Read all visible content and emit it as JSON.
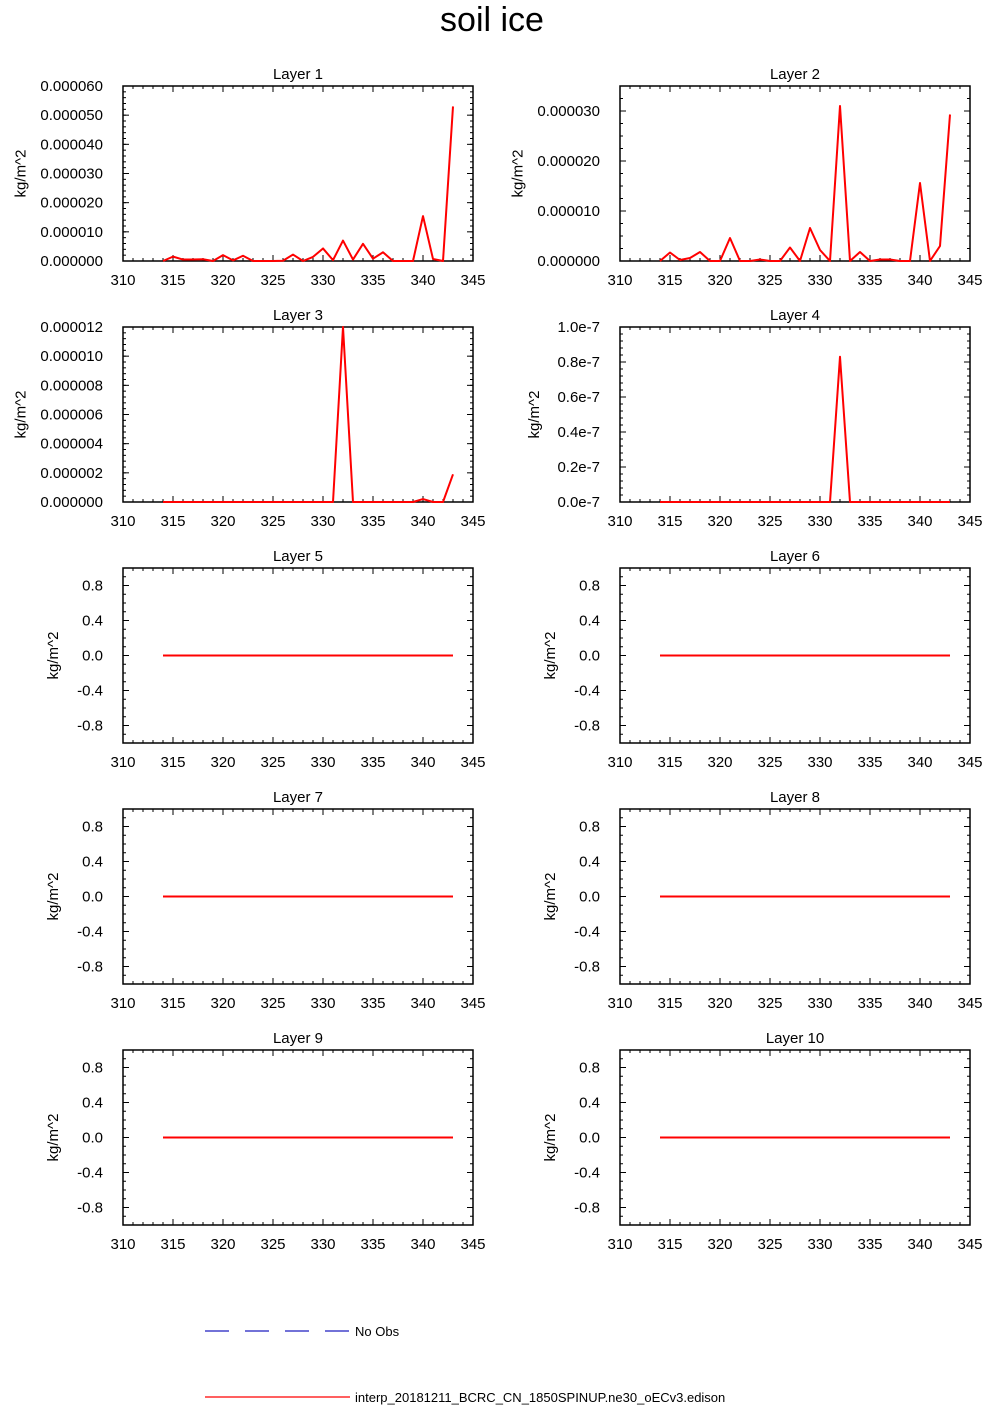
{
  "page": {
    "title": "soil ice"
  },
  "legend": [
    {
      "label": "No Obs",
      "color": "#1f1fbf",
      "style": "dashed"
    },
    {
      "label": "interp_20181211_BCRC_CN_1850SPINUP.ne30_oECv3.edison",
      "color": "#ff0000",
      "style": "solid"
    }
  ],
  "chart_data": [
    {
      "type": "line",
      "title": "Layer 1",
      "xlabel": "",
      "ylabel": "kg/m^2",
      "xlim": [
        310,
        345
      ],
      "ylim": [
        0,
        6e-05
      ],
      "xticks": [
        310,
        315,
        320,
        325,
        330,
        335,
        340,
        345
      ],
      "yticks": [
        0,
        1e-05,
        2e-05,
        3e-05,
        4e-05,
        5e-05,
        6e-05
      ],
      "ytick_labels": [
        "0.000000",
        "0.000010",
        "0.000020",
        "0.000030",
        "0.000040",
        "0.000050",
        "0.000060"
      ],
      "series": [
        {
          "color": "#ff0000",
          "x": [
            314,
            315,
            316,
            317,
            318,
            319,
            320,
            321,
            322,
            323,
            324,
            325,
            326,
            327,
            328,
            329,
            330,
            331,
            332,
            333,
            334,
            335,
            336,
            337,
            338,
            339,
            340,
            341,
            342,
            343
          ],
          "y": [
            0,
            1.5e-06,
            5e-07,
            5e-07,
            6e-07,
            0,
            2e-06,
            2e-07,
            1.8e-06,
            0,
            0,
            0,
            1e-07,
            2.2e-06,
            0,
            1.4e-06,
            4.3e-06,
            3e-07,
            7e-06,
            5e-07,
            5.9e-06,
            8e-07,
            3e-06,
            0,
            0,
            0,
            1.54e-05,
            7e-07,
            0,
            5.3e-05
          ]
        }
      ]
    },
    {
      "type": "line",
      "title": "Layer 2",
      "xlabel": "",
      "ylabel": "kg/m^2",
      "xlim": [
        310,
        345
      ],
      "ylim": [
        0,
        3.5e-05
      ],
      "xticks": [
        310,
        315,
        320,
        325,
        330,
        335,
        340,
        345
      ],
      "yticks": [
        0,
        1e-05,
        2e-05,
        3e-05
      ],
      "ytick_labels": [
        "0.000000",
        "0.000010",
        "0.000020",
        "0.000030"
      ],
      "series": [
        {
          "color": "#ff0000",
          "x": [
            314,
            315,
            316,
            317,
            318,
            319,
            320,
            321,
            322,
            323,
            324,
            325,
            326,
            327,
            328,
            329,
            330,
            331,
            332,
            333,
            334,
            335,
            336,
            337,
            338,
            339,
            340,
            341,
            342,
            343
          ],
          "y": [
            0,
            1.7e-06,
            2e-07,
            6e-07,
            1.8e-06,
            0,
            0,
            4.6e-06,
            0,
            0,
            3e-07,
            0,
            0,
            2.7e-06,
            0,
            6.6e-06,
            2.2e-06,
            0,
            3.1e-05,
            0,
            1.8e-06,
            0,
            3e-07,
            3e-07,
            0,
            0,
            1.56e-05,
            0,
            3e-06,
            2.93e-05
          ]
        }
      ]
    },
    {
      "type": "line",
      "title": "Layer 3",
      "xlabel": "",
      "ylabel": "kg/m^2",
      "xlim": [
        310,
        345
      ],
      "ylim": [
        0,
        1.2e-05
      ],
      "xticks": [
        310,
        315,
        320,
        325,
        330,
        335,
        340,
        345
      ],
      "yticks": [
        0,
        2e-06,
        4e-06,
        6e-06,
        8e-06,
        1e-05,
        1.2e-05
      ],
      "ytick_labels": [
        "0.000000",
        "0.000002",
        "0.000004",
        "0.000006",
        "0.000008",
        "0.000010",
        "0.000012"
      ],
      "series": [
        {
          "color": "#ff0000",
          "x": [
            314,
            315,
            316,
            317,
            318,
            319,
            320,
            321,
            322,
            323,
            324,
            325,
            326,
            327,
            328,
            329,
            330,
            331,
            332,
            333,
            334,
            335,
            336,
            337,
            338,
            339,
            340,
            341,
            342,
            343
          ],
          "y": [
            0,
            0,
            0,
            0,
            0,
            0,
            0,
            0,
            0,
            0,
            0,
            0,
            0,
            0,
            0,
            0,
            0,
            0,
            1.2e-05,
            0,
            0,
            0,
            0,
            0,
            0,
            0,
            2e-07,
            0,
            0,
            1.9e-06
          ]
        }
      ]
    },
    {
      "type": "line",
      "title": "Layer 4",
      "xlabel": "",
      "ylabel": "kg/m^2",
      "xlim": [
        310,
        345
      ],
      "ylim": [
        0,
        1e-07
      ],
      "xticks": [
        310,
        315,
        320,
        325,
        330,
        335,
        340,
        345
      ],
      "yticks": [
        0,
        2e-08,
        4e-08,
        6e-08,
        8e-08,
        1e-07
      ],
      "ytick_labels": [
        "0.0e-7",
        "0.2e-7",
        "0.4e-7",
        "0.6e-7",
        "0.8e-7",
        "1.0e-7"
      ],
      "series": [
        {
          "color": "#ff0000",
          "x": [
            314,
            315,
            316,
            317,
            318,
            319,
            320,
            321,
            322,
            323,
            324,
            325,
            326,
            327,
            328,
            329,
            330,
            331,
            332,
            333,
            334,
            335,
            336,
            337,
            338,
            339,
            340,
            341,
            342,
            343
          ],
          "y": [
            0,
            0,
            0,
            0,
            0,
            0,
            0,
            0,
            0,
            0,
            0,
            0,
            0,
            0,
            0,
            0,
            0,
            0,
            8.3e-08,
            0,
            0,
            0,
            0,
            0,
            0,
            0,
            0,
            0,
            0,
            0
          ]
        }
      ]
    },
    {
      "type": "line",
      "title": "Layer 5",
      "xlabel": "",
      "ylabel": "kg/m^2",
      "xlim": [
        310,
        345
      ],
      "ylim": [
        -1,
        1
      ],
      "xticks": [
        310,
        315,
        320,
        325,
        330,
        335,
        340,
        345
      ],
      "yticks": [
        -0.8,
        -0.4,
        0,
        0.4,
        0.8
      ],
      "ytick_labels": [
        "-0.8",
        "-0.4",
        "0.0",
        "0.4",
        "0.8"
      ],
      "series": [
        {
          "color": "#ff0000",
          "x": [
            314,
            343
          ],
          "y": [
            0,
            0
          ]
        }
      ]
    },
    {
      "type": "line",
      "title": "Layer 6",
      "xlabel": "",
      "ylabel": "kg/m^2",
      "xlim": [
        310,
        345
      ],
      "ylim": [
        -1,
        1
      ],
      "xticks": [
        310,
        315,
        320,
        325,
        330,
        335,
        340,
        345
      ],
      "yticks": [
        -0.8,
        -0.4,
        0,
        0.4,
        0.8
      ],
      "ytick_labels": [
        "-0.8",
        "-0.4",
        "0.0",
        "0.4",
        "0.8"
      ],
      "series": [
        {
          "color": "#ff0000",
          "x": [
            314,
            343
          ],
          "y": [
            0,
            0
          ]
        }
      ]
    },
    {
      "type": "line",
      "title": "Layer 7",
      "xlabel": "",
      "ylabel": "kg/m^2",
      "xlim": [
        310,
        345
      ],
      "ylim": [
        -1,
        1
      ],
      "xticks": [
        310,
        315,
        320,
        325,
        330,
        335,
        340,
        345
      ],
      "yticks": [
        -0.8,
        -0.4,
        0,
        0.4,
        0.8
      ],
      "ytick_labels": [
        "-0.8",
        "-0.4",
        "0.0",
        "0.4",
        "0.8"
      ],
      "series": [
        {
          "color": "#ff0000",
          "x": [
            314,
            343
          ],
          "y": [
            0,
            0
          ]
        }
      ]
    },
    {
      "type": "line",
      "title": "Layer 8",
      "xlabel": "",
      "ylabel": "kg/m^2",
      "xlim": [
        310,
        345
      ],
      "ylim": [
        -1,
        1
      ],
      "xticks": [
        310,
        315,
        320,
        325,
        330,
        335,
        340,
        345
      ],
      "yticks": [
        -0.8,
        -0.4,
        0,
        0.4,
        0.8
      ],
      "ytick_labels": [
        "-0.8",
        "-0.4",
        "0.0",
        "0.4",
        "0.8"
      ],
      "series": [
        {
          "color": "#ff0000",
          "x": [
            314,
            343
          ],
          "y": [
            0,
            0
          ]
        }
      ]
    },
    {
      "type": "line",
      "title": "Layer 9",
      "xlabel": "",
      "ylabel": "kg/m^2",
      "xlim": [
        310,
        345
      ],
      "ylim": [
        -1,
        1
      ],
      "xticks": [
        310,
        315,
        320,
        325,
        330,
        335,
        340,
        345
      ],
      "yticks": [
        -0.8,
        -0.4,
        0,
        0.4,
        0.8
      ],
      "ytick_labels": [
        "-0.8",
        "-0.4",
        "0.0",
        "0.4",
        "0.8"
      ],
      "series": [
        {
          "color": "#ff0000",
          "x": [
            314,
            343
          ],
          "y": [
            0,
            0
          ]
        }
      ]
    },
    {
      "type": "line",
      "title": "Layer 10",
      "xlabel": "",
      "ylabel": "kg/m^2",
      "xlim": [
        310,
        345
      ],
      "ylim": [
        -1,
        1
      ],
      "xticks": [
        310,
        315,
        320,
        325,
        330,
        335,
        340,
        345
      ],
      "yticks": [
        -0.8,
        -0.4,
        0,
        0.4,
        0.8
      ],
      "ytick_labels": [
        "-0.8",
        "-0.4",
        "0.0",
        "0.4",
        "0.8"
      ],
      "series": [
        {
          "color": "#ff0000",
          "x": [
            314,
            343
          ],
          "y": [
            0,
            0
          ]
        }
      ]
    }
  ]
}
